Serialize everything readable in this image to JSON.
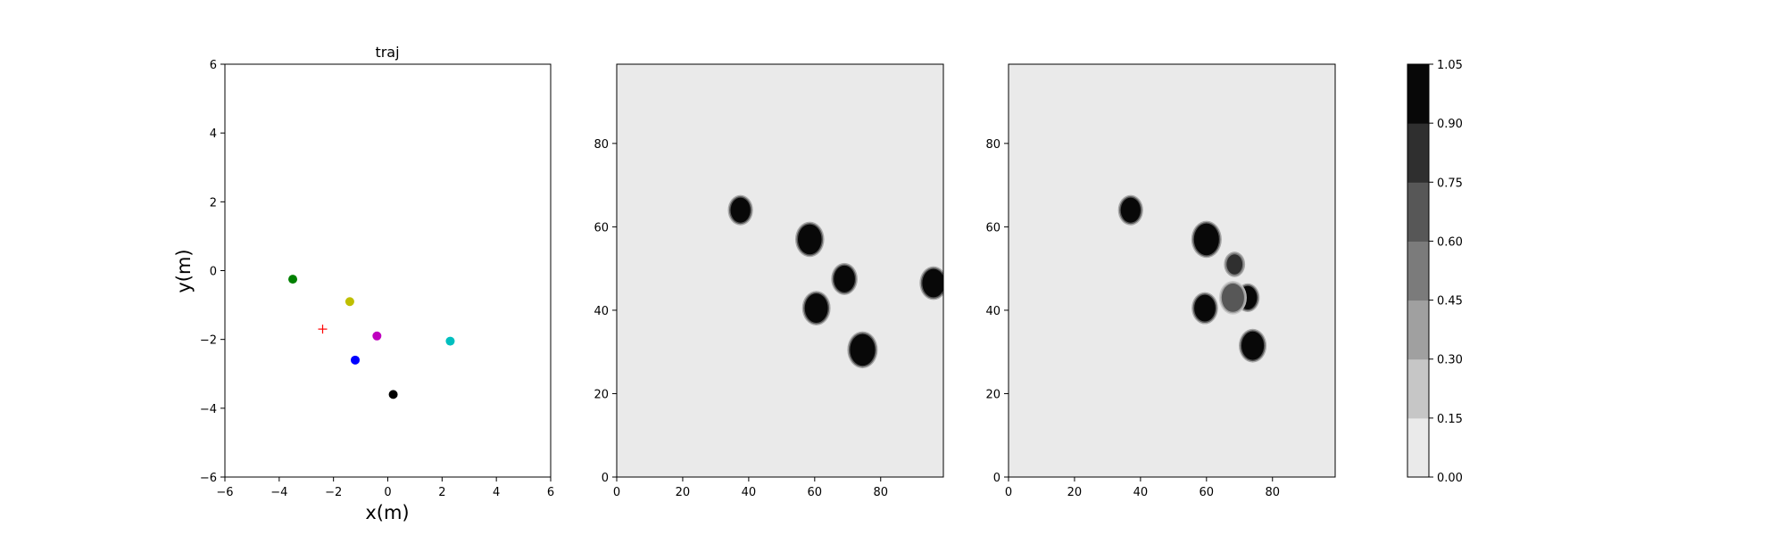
{
  "chart_data": [
    {
      "type": "scatter",
      "title": "traj",
      "xlabel": "x(m)",
      "ylabel": "y(m)",
      "xlim": [
        -6,
        6
      ],
      "ylim": [
        -6,
        6
      ],
      "xticks": [
        "−6",
        "−4",
        "−2",
        "0",
        "2",
        "4",
        "6"
      ],
      "yticks": [
        "−6",
        "−4",
        "−2",
        "0",
        "2",
        "4",
        "6"
      ],
      "grid": false,
      "points": [
        {
          "x": -3.5,
          "y": -0.25,
          "color": "#008000",
          "marker": "circle"
        },
        {
          "x": -1.4,
          "y": -0.9,
          "color": "#bfbf00",
          "marker": "circle"
        },
        {
          "x": -0.4,
          "y": -1.9,
          "color": "#bf00bf",
          "marker": "circle"
        },
        {
          "x": 2.3,
          "y": -2.05,
          "color": "#00bfbf",
          "marker": "circle"
        },
        {
          "x": -1.2,
          "y": -2.6,
          "color": "#0000ff",
          "marker": "circle"
        },
        {
          "x": 0.2,
          "y": -3.6,
          "color": "#000000",
          "marker": "circle"
        },
        {
          "x": -2.4,
          "y": -1.7,
          "color": "#ff0000",
          "marker": "plus"
        }
      ]
    },
    {
      "type": "heatmap",
      "title": "",
      "xlim": [
        0,
        99
      ],
      "ylim": [
        0,
        99
      ],
      "xticks": [
        "0",
        "20",
        "40",
        "60",
        "80"
      ],
      "yticks": [
        "0",
        "20",
        "40",
        "60",
        "80"
      ],
      "background_value": 0.08,
      "blobs": [
        {
          "x": 37.5,
          "y": 64,
          "r": 3.0,
          "value": 1.0
        },
        {
          "x": 58.5,
          "y": 57,
          "r": 3.6,
          "value": 1.0
        },
        {
          "x": 69,
          "y": 47.5,
          "r": 3.2,
          "value": 1.0
        },
        {
          "x": 96,
          "y": 46.5,
          "r": 3.4,
          "value": 1.0
        },
        {
          "x": 60.5,
          "y": 40.5,
          "r": 3.5,
          "value": 1.0
        },
        {
          "x": 74.5,
          "y": 30.5,
          "r": 3.8,
          "value": 1.0
        }
      ]
    },
    {
      "type": "heatmap",
      "title": "",
      "xlim": [
        0,
        99
      ],
      "ylim": [
        0,
        99
      ],
      "xticks": [
        "0",
        "20",
        "40",
        "60",
        "80"
      ],
      "yticks": [
        "0",
        "20",
        "40",
        "60",
        "80"
      ],
      "background_value": 0.08,
      "blobs": [
        {
          "x": 37,
          "y": 64,
          "r": 3.0,
          "value": 1.0
        },
        {
          "x": 60,
          "y": 57,
          "r": 3.8,
          "value": 1.0
        },
        {
          "x": 59.5,
          "y": 40.5,
          "r": 3.2,
          "value": 1.0
        },
        {
          "x": 74,
          "y": 31.5,
          "r": 3.4,
          "value": 1.0
        },
        {
          "x": 72.5,
          "y": 43,
          "r": 2.8,
          "value": 0.95
        },
        {
          "x": 68.5,
          "y": 51,
          "r": 2.4,
          "value": 0.8
        },
        {
          "x": 68,
          "y": 43,
          "r": 3.4,
          "value": 0.6
        }
      ]
    }
  ],
  "colorbar": {
    "ticks": [
      "0.00",
      "0.15",
      "0.30",
      "0.45",
      "0.60",
      "0.75",
      "0.90",
      "1.05"
    ],
    "levels": [
      "#eaeaea",
      "#c6c6c6",
      "#a0a0a0",
      "#7b7b7b",
      "#575757",
      "#2f2f2f",
      "#080808"
    ],
    "range": [
      0.0,
      1.05
    ]
  }
}
